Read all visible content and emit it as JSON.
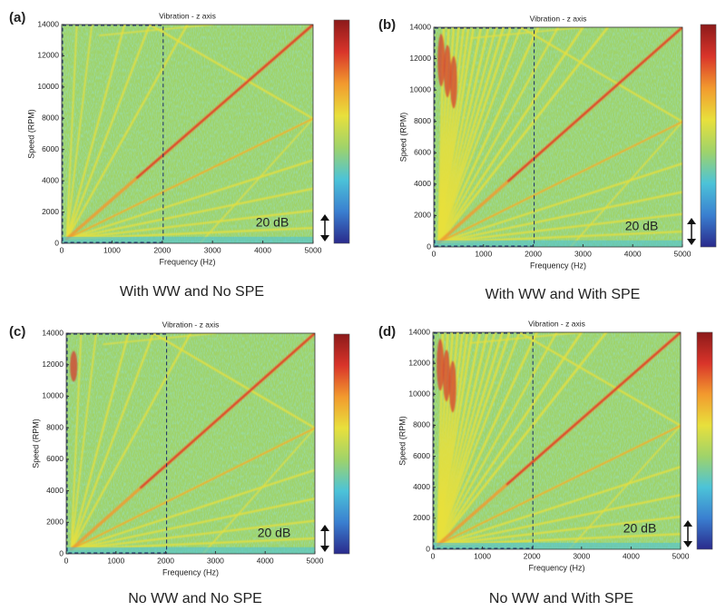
{
  "chart_data": [
    {
      "type": "spectrogram",
      "panel": "(a)",
      "title": "Vibration - z axis",
      "x_label": "Frequency (Hz)",
      "y_label": "Speed (RPM)",
      "xlim": [
        0,
        5000
      ],
      "ylim": [
        0,
        14000
      ],
      "xticks": [
        0,
        1000,
        2000,
        3000,
        4000,
        5000
      ],
      "yticks": [
        0,
        2000,
        4000,
        6000,
        8000,
        10000,
        12000,
        14000
      ],
      "annotation": "20 dB",
      "caption": "With WW and No SPE",
      "colormap": [
        "#2a2a8c",
        "#3a7fd0",
        "#4cc3d8",
        "#9fd36a",
        "#e8e03c",
        "#f29a2e",
        "#d9342a",
        "#8c1a1a"
      ]
    },
    {
      "type": "spectrogram",
      "panel": "(b)",
      "title": "Vibration - z axis",
      "x_label": "Frequency (Hz)",
      "y_label": "Speed (RPM)",
      "xlim": [
        0,
        5000
      ],
      "ylim": [
        0,
        14000
      ],
      "xticks": [
        0,
        1000,
        2000,
        3000,
        4000,
        5000
      ],
      "yticks": [
        0,
        2000,
        4000,
        6000,
        8000,
        10000,
        12000,
        14000
      ],
      "annotation": "20 dB",
      "caption": "With WW and With SPE",
      "colormap": [
        "#2a2a8c",
        "#3a7fd0",
        "#4cc3d8",
        "#9fd36a",
        "#e8e03c",
        "#f29a2e",
        "#d9342a",
        "#8c1a1a"
      ]
    },
    {
      "type": "spectrogram",
      "panel": "(c)",
      "title": "Vibration - z axis",
      "x_label": "Frequency (Hz)",
      "y_label": "Speed (RPM)",
      "xlim": [
        0,
        5000
      ],
      "ylim": [
        0,
        14000
      ],
      "xticks": [
        0,
        1000,
        2000,
        3000,
        4000,
        5000
      ],
      "yticks": [
        0,
        2000,
        4000,
        6000,
        8000,
        10000,
        12000,
        14000
      ],
      "annotation": "20 dB",
      "caption": "No WW and No SPE",
      "colormap": [
        "#2a2a8c",
        "#3a7fd0",
        "#4cc3d8",
        "#9fd36a",
        "#e8e03c",
        "#f29a2e",
        "#d9342a",
        "#8c1a1a"
      ]
    },
    {
      "type": "spectrogram",
      "panel": "(d)",
      "title": "Vibration - z axis",
      "x_label": "Frequency (Hz)",
      "y_label": "Speed (RPM)",
      "xlim": [
        0,
        5000
      ],
      "ylim": [
        0,
        14000
      ],
      "xticks": [
        0,
        1000,
        2000,
        3000,
        4000,
        5000
      ],
      "yticks": [
        0,
        2000,
        4000,
        6000,
        8000,
        10000,
        12000,
        14000
      ],
      "annotation": "20 dB",
      "caption": "No WW and With SPE",
      "colormap": [
        "#2a2a8c",
        "#3a7fd0",
        "#4cc3d8",
        "#9fd36a",
        "#e8e03c",
        "#f29a2e",
        "#d9342a",
        "#8c1a1a"
      ]
    }
  ]
}
